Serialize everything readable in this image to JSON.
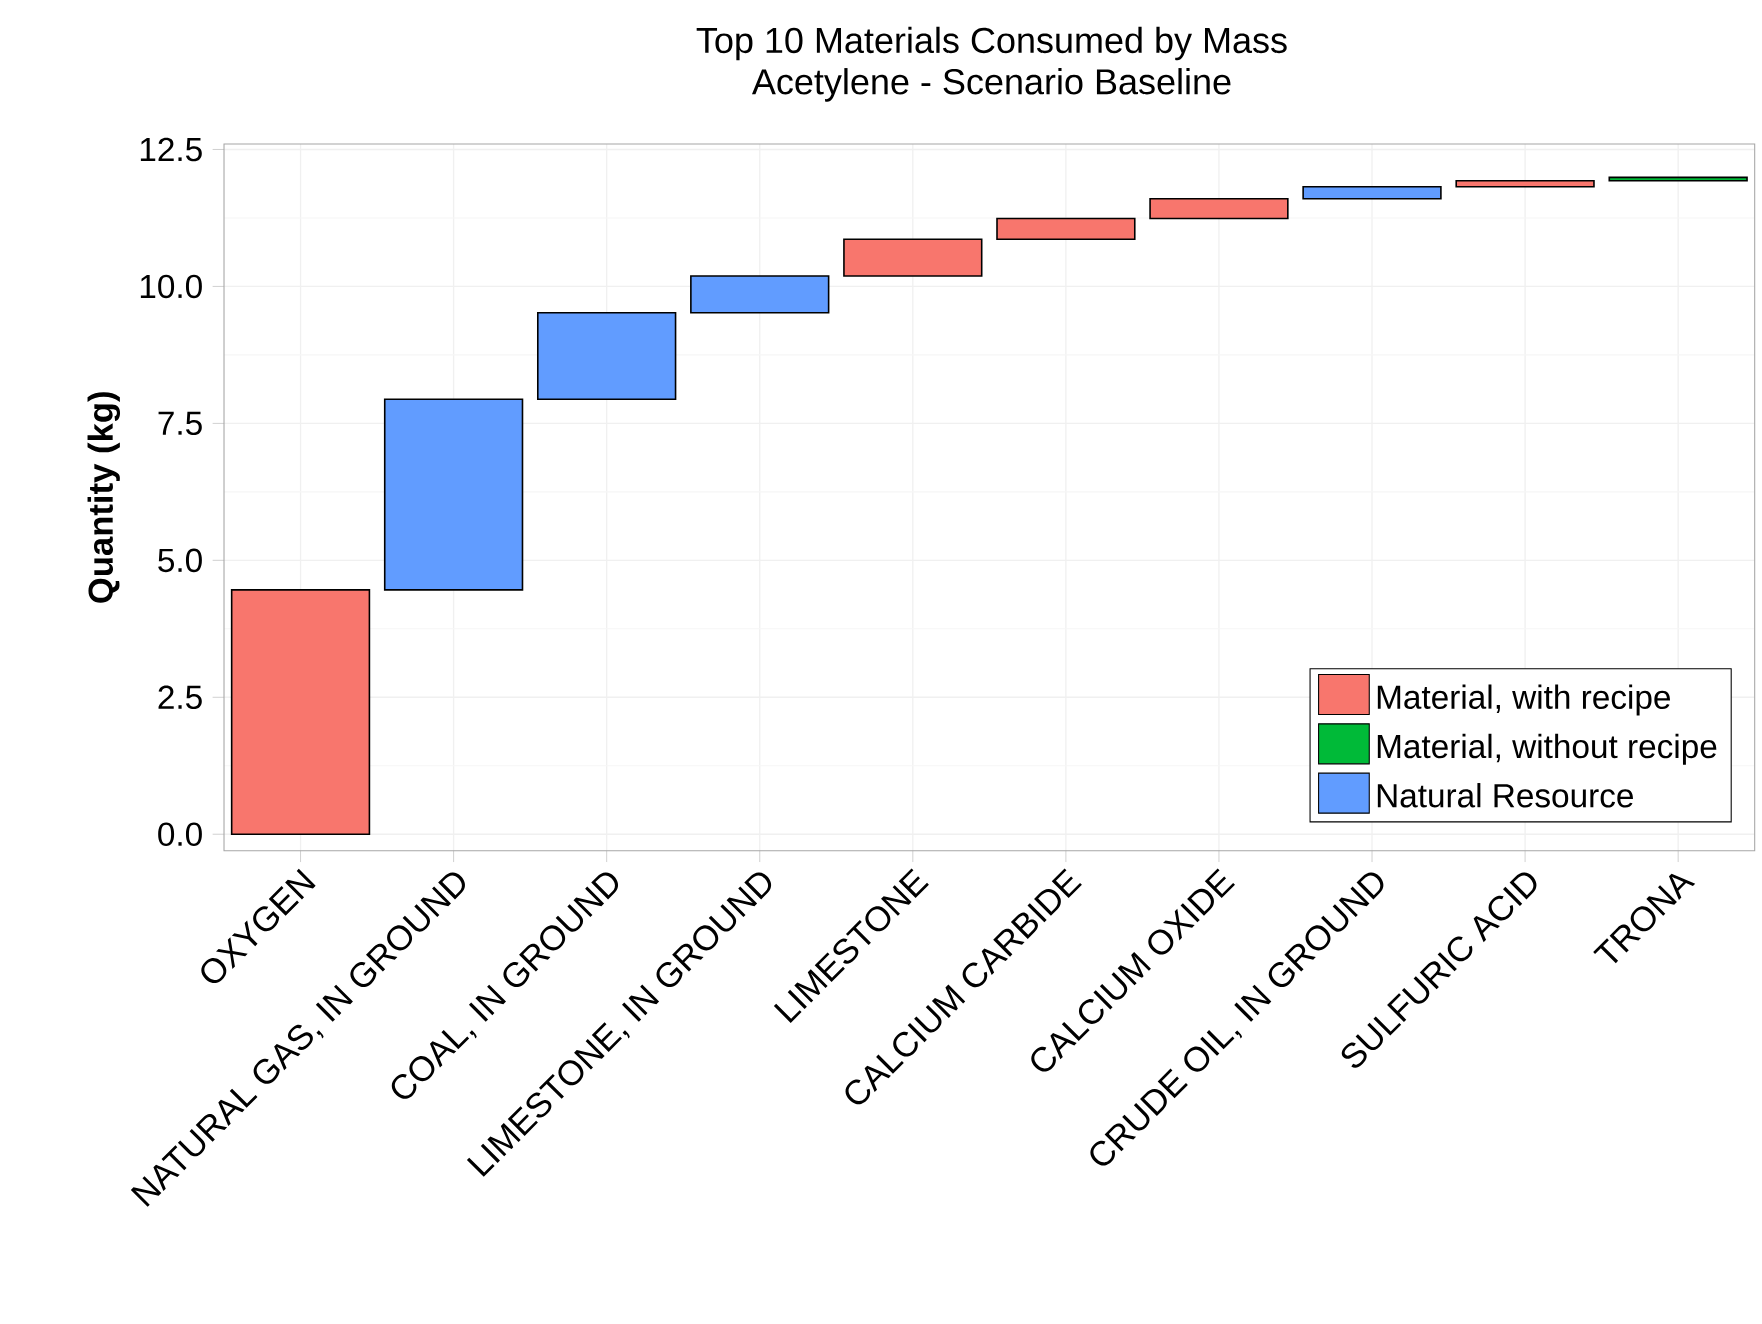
{
  "chart_data": {
    "type": "bar",
    "title": "Top 10 Materials Consumed by Mass",
    "subtitle": "Acetylene - Scenario Baseline",
    "ylabel": "Quantity (kg)",
    "categories": [
      "OXYGEN",
      "NATURAL GAS, IN GROUND",
      "COAL, IN GROUND",
      "LIMESTONE, IN GROUND",
      "LIMESTONE",
      "CALCIUM CARBIDE",
      "CALCIUM OXIDE",
      "CRUDE OIL, IN GROUND",
      "SULFURIC ACID",
      "TRONA"
    ],
    "series": [
      {
        "name": "Material, with recipe",
        "color": "#f8766d",
        "values": [
          4.46,
          null,
          null,
          null,
          0.67,
          0.38,
          0.36,
          null,
          0.11,
          null
        ],
        "base": [
          0,
          null,
          null,
          null,
          10.19,
          10.86,
          11.24,
          null,
          11.82,
          null
        ]
      },
      {
        "name": "Material, without recipe",
        "color": "#00ba38",
        "values": [
          null,
          null,
          null,
          null,
          null,
          null,
          null,
          null,
          null,
          0.06
        ],
        "base": [
          null,
          null,
          null,
          null,
          null,
          null,
          null,
          null,
          null,
          11.93
        ]
      },
      {
        "name": "Natural Resource",
        "color": "#619cff",
        "values": [
          null,
          3.48,
          1.58,
          0.67,
          null,
          null,
          null,
          0.22,
          null,
          null
        ],
        "base": [
          null,
          4.46,
          7.94,
          9.52,
          null,
          null,
          null,
          11.6,
          null,
          null
        ]
      }
    ],
    "ylim": [
      -0.3,
      12.6
    ],
    "yticks": [
      {
        "value": 0,
        "label": "0.0"
      },
      {
        "value": 2.5,
        "label": "2.5"
      },
      {
        "value": 5,
        "label": "5.0"
      },
      {
        "value": 7.5,
        "label": "7.5"
      },
      {
        "value": 10,
        "label": "10.0"
      },
      {
        "value": 12.5,
        "label": "12.5"
      }
    ],
    "grid": true,
    "legend": "bottom right"
  }
}
